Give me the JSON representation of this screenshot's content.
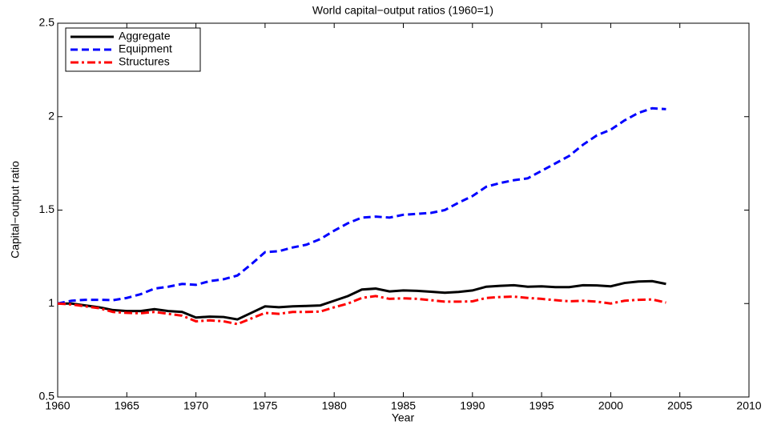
{
  "chart_data": {
    "type": "line",
    "title": "World capital−output ratios (1960=1)",
    "xlabel": "Year",
    "ylabel": "Capital−output ratio",
    "x": [
      1960,
      1961,
      1962,
      1963,
      1964,
      1965,
      1966,
      1967,
      1968,
      1969,
      1970,
      1971,
      1972,
      1973,
      1974,
      1975,
      1976,
      1977,
      1978,
      1979,
      1980,
      1981,
      1982,
      1983,
      1984,
      1985,
      1986,
      1987,
      1988,
      1989,
      1990,
      1991,
      1992,
      1993,
      1994,
      1995,
      1996,
      1997,
      1998,
      1999,
      2000,
      2001,
      2002,
      2003,
      2004
    ],
    "series": [
      {
        "name": "Aggregate",
        "color": "#000000",
        "linestyle": "-",
        "values": [
          1.0,
          1.0,
          0.99,
          0.98,
          0.965,
          0.96,
          0.96,
          0.97,
          0.96,
          0.955,
          0.925,
          0.93,
          0.928,
          0.915,
          0.95,
          0.985,
          0.98,
          0.985,
          0.987,
          0.99,
          1.015,
          1.04,
          1.075,
          1.08,
          1.065,
          1.07,
          1.068,
          1.063,
          1.058,
          1.062,
          1.07,
          1.09,
          1.095,
          1.098,
          1.09,
          1.092,
          1.088,
          1.088,
          1.098,
          1.097,
          1.092,
          1.11,
          1.118,
          1.12,
          1.105
        ]
      },
      {
        "name": "Equipment",
        "color": "#0000ff",
        "linestyle": "--",
        "values": [
          1.0,
          1.015,
          1.02,
          1.02,
          1.018,
          1.03,
          1.05,
          1.08,
          1.09,
          1.105,
          1.1,
          1.12,
          1.13,
          1.15,
          1.21,
          1.275,
          1.28,
          1.3,
          1.315,
          1.345,
          1.39,
          1.43,
          1.46,
          1.465,
          1.46,
          1.475,
          1.48,
          1.485,
          1.5,
          1.54,
          1.575,
          1.625,
          1.645,
          1.66,
          1.67,
          1.71,
          1.75,
          1.79,
          1.85,
          1.9,
          1.93,
          1.98,
          2.02,
          2.045,
          2.04
        ]
      },
      {
        "name": "Structures",
        "color": "#ff0000",
        "linestyle": "-.",
        "values": [
          1.0,
          0.995,
          0.985,
          0.975,
          0.955,
          0.95,
          0.948,
          0.955,
          0.945,
          0.935,
          0.905,
          0.91,
          0.905,
          0.89,
          0.92,
          0.95,
          0.945,
          0.955,
          0.955,
          0.957,
          0.98,
          1.0,
          1.03,
          1.04,
          1.025,
          1.028,
          1.025,
          1.018,
          1.01,
          1.01,
          1.012,
          1.03,
          1.035,
          1.037,
          1.03,
          1.025,
          1.018,
          1.012,
          1.015,
          1.01,
          1.0,
          1.015,
          1.02,
          1.022,
          1.005
        ]
      }
    ],
    "xlim": [
      1960,
      2010
    ],
    "xticks": [
      1960,
      1965,
      1970,
      1975,
      1980,
      1985,
      1990,
      1995,
      2000,
      2005,
      2010
    ],
    "ylim": [
      0.5,
      2.5
    ],
    "yticks": [
      0.5,
      1,
      1.5,
      2,
      2.5
    ],
    "legend": "upper left"
  }
}
